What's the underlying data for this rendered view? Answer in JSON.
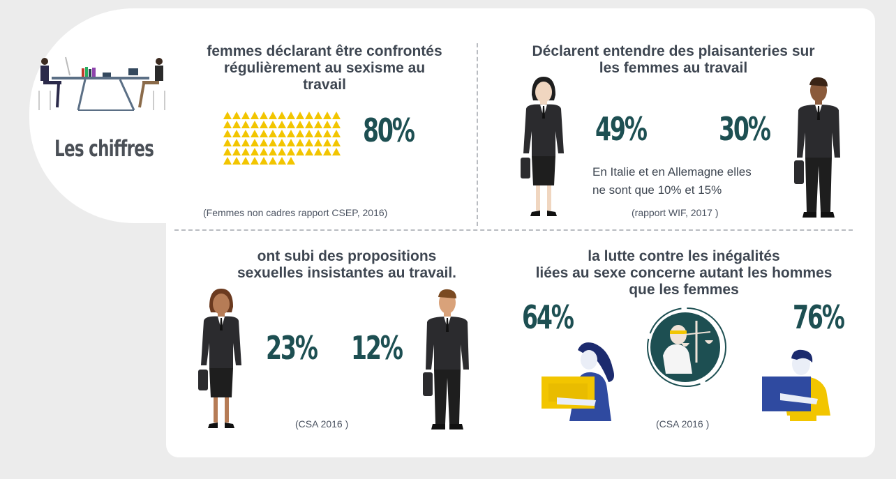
{
  "header": {
    "title": "Les chiffres"
  },
  "panel_sexisme": {
    "title_lines": [
      "femmes déclarant être confrontés",
      "régulièrement au sexisme au",
      "travail"
    ],
    "value": "80%",
    "fraction_shown": 0.8,
    "source": "(Femmes non cadres rapport CSEP, 2016)"
  },
  "panel_plaisanteries": {
    "title_lines": [
      "Déclarent entendre des plaisanteries sur",
      "les femmes au travail"
    ],
    "value_women": "49%",
    "value_men": "30%",
    "note_lines": [
      "En Italie et en Allemagne elles",
      "ne sont que 10% et 15%"
    ],
    "source": "(rapport WIF, 2017 )"
  },
  "panel_propositions": {
    "title_lines": [
      "ont subi des propositions",
      "sexuelles insistantes au travail."
    ],
    "value_women": "23%",
    "value_men": "12%",
    "source": "(CSA 2016 )"
  },
  "panel_lutte": {
    "title_lines": [
      "la lutte contre les inégalités",
      "liées au sexe concerne autant les hommes",
      "que les femmes"
    ],
    "value_women": "64%",
    "value_men": "76%",
    "source": "(CSA 2016 )"
  },
  "colors": {
    "accent_yellow": "#f2c500",
    "teal_numbers": "#1d4f52",
    "text_dark": "#3e4651",
    "suit": "#2b2b2e"
  },
  "icons": [
    "office-desk-icon",
    "businesswoman-icon",
    "businessman-icon",
    "justice-scales-icon",
    "woman-with-sign-icon",
    "man-with-sign-icon"
  ]
}
